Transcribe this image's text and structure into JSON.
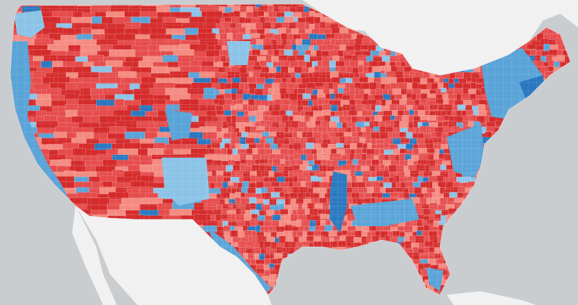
{
  "map": {
    "type": "county-choropleth",
    "region": "contiguous-united-states",
    "colors": {
      "water": "#c9cdd0",
      "land_outside": "#f1f1f1",
      "republican_strong": "#d52b2b",
      "republican_medium": "#e64c4c",
      "republican_light": "#f48a80",
      "democrat_light": "#8cc4e8",
      "democrat_medium": "#5aa4d8",
      "democrat_strong": "#2a78c0",
      "county_border": "#ffffff"
    }
  }
}
